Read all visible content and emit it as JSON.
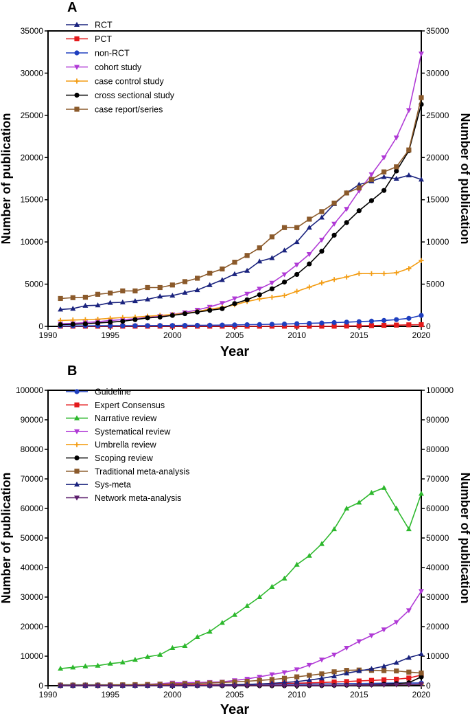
{
  "chart_data": [
    {
      "type": "line",
      "panel_label": "A",
      "xlabel": "Year",
      "ylabel": "Number of publication",
      "ylabel_right": "Number of publication",
      "xlim": [
        1990,
        2020
      ],
      "ylim": [
        0,
        35000
      ],
      "xticks": [
        "1990",
        "1995",
        "2000",
        "2005",
        "2010",
        "2015",
        "2020"
      ],
      "yticks": [
        "0",
        "5000",
        "10000",
        "15000",
        "20000",
        "25000",
        "30000",
        "35000"
      ],
      "legend_position": "top-left",
      "x": [
        1991,
        1992,
        1993,
        1994,
        1995,
        1996,
        1997,
        1998,
        1999,
        2000,
        2001,
        2002,
        2003,
        2004,
        2005,
        2006,
        2007,
        2008,
        2009,
        2010,
        2011,
        2012,
        2013,
        2014,
        2015,
        2016,
        2017,
        2018,
        2019,
        2020
      ],
      "series": [
        {
          "name": "RCT",
          "color": "#1a237e",
          "marker": "triangle-up",
          "values": [
            2000,
            2100,
            2450,
            2500,
            2800,
            2850,
            3000,
            3200,
            3550,
            3650,
            4000,
            4300,
            4900,
            5500,
            6200,
            6600,
            7700,
            8100,
            9000,
            10000,
            11700,
            12900,
            14500,
            15800,
            16800,
            17200,
            17700,
            17500,
            17900,
            17400
          ]
        },
        {
          "name": "PCT",
          "color": "#e41a1c",
          "marker": "square",
          "values": [
            20,
            20,
            20,
            20,
            20,
            20,
            20,
            20,
            20,
            20,
            20,
            20,
            20,
            20,
            20,
            20,
            20,
            20,
            20,
            20,
            20,
            20,
            20,
            40,
            60,
            90,
            120,
            150,
            180,
            200
          ]
        },
        {
          "name": "non-RCT",
          "color": "#1f3fbf",
          "marker": "circle",
          "values": [
            50,
            60,
            60,
            70,
            70,
            80,
            80,
            90,
            100,
            100,
            110,
            120,
            130,
            150,
            170,
            200,
            220,
            250,
            280,
            320,
            360,
            400,
            450,
            500,
            560,
            620,
            700,
            800,
            950,
            1300
          ]
        },
        {
          "name": "cohort study",
          "color": "#b03ad6",
          "marker": "triangle-down",
          "values": [
            300,
            350,
            450,
            550,
            700,
            800,
            900,
            1050,
            1200,
            1400,
            1650,
            1950,
            2300,
            2750,
            3300,
            3850,
            4450,
            5150,
            6150,
            7300,
            8550,
            10250,
            12150,
            13900,
            16050,
            18000,
            20000,
            22350,
            25600,
            32300
          ]
        },
        {
          "name": "case control study",
          "color": "#f39c12",
          "marker": "plus",
          "values": [
            700,
            750,
            800,
            850,
            950,
            1050,
            1100,
            1200,
            1300,
            1400,
            1550,
            1750,
            2050,
            2250,
            2550,
            2950,
            3250,
            3450,
            3650,
            4150,
            4650,
            5150,
            5550,
            5850,
            6250,
            6250,
            6250,
            6350,
            6850,
            7800
          ]
        },
        {
          "name": "cross sectional study",
          "color": "#000000",
          "marker": "circle",
          "values": [
            200,
            250,
            300,
            400,
            500,
            600,
            800,
            1000,
            1100,
            1300,
            1500,
            1700,
            1900,
            2100,
            2700,
            3150,
            3750,
            4450,
            5250,
            6150,
            7400,
            8900,
            10800,
            12300,
            13700,
            14900,
            16100,
            18400,
            20800,
            26300
          ]
        },
        {
          "name": "case report/series",
          "color": "#8b5a2b",
          "marker": "square",
          "values": [
            3300,
            3400,
            3450,
            3800,
            3950,
            4200,
            4200,
            4600,
            4600,
            4900,
            5300,
            5700,
            6300,
            6800,
            7600,
            8400,
            9300,
            10600,
            11700,
            11700,
            12700,
            13600,
            14600,
            15800,
            16400,
            17400,
            18300,
            18900,
            20900,
            27100
          ]
        }
      ]
    },
    {
      "type": "line",
      "panel_label": "B",
      "xlabel": "Year",
      "ylabel": "Number of publication",
      "ylabel_right": "Number of publication",
      "xlim": [
        1990,
        2020
      ],
      "ylim": [
        0,
        100000
      ],
      "xticks": [
        "1990",
        "1995",
        "2000",
        "2005",
        "2010",
        "2015",
        "2020"
      ],
      "yticks": [
        "0",
        "10000",
        "20000",
        "30000",
        "40000",
        "50000",
        "60000",
        "70000",
        "80000",
        "90000",
        "100000"
      ],
      "legend_position": "top-left",
      "x": [
        1991,
        1992,
        1993,
        1994,
        1995,
        1996,
        1997,
        1998,
        1999,
        2000,
        2001,
        2002,
        2003,
        2004,
        2005,
        2006,
        2007,
        2008,
        2009,
        2010,
        2011,
        2012,
        2013,
        2014,
        2015,
        2016,
        2017,
        2018,
        2019,
        2020
      ],
      "series": [
        {
          "name": "Guideline",
          "color": "#1f3fbf",
          "marker": "circle",
          "values": [
            300,
            300,
            300,
            300,
            300,
            300,
            300,
            300,
            300,
            350,
            350,
            350,
            350,
            400,
            400,
            400,
            450,
            450,
            500,
            500,
            550,
            600,
            650,
            700,
            750,
            800,
            850,
            900,
            900,
            900
          ]
        },
        {
          "name": "Expert Consensus",
          "color": "#e41a1c",
          "marker": "square",
          "values": [
            100,
            100,
            100,
            100,
            100,
            150,
            150,
            150,
            150,
            200,
            200,
            250,
            300,
            350,
            400,
            450,
            550,
            650,
            750,
            850,
            950,
            1100,
            1250,
            1400,
            1600,
            1800,
            2000,
            2200,
            2600,
            3600
          ]
        },
        {
          "name": "Narrative review",
          "color": "#2db82d",
          "marker": "triangle-up",
          "values": [
            5800,
            6200,
            6600,
            6800,
            7500,
            7900,
            8800,
            9800,
            10500,
            12800,
            13500,
            16500,
            18300,
            21300,
            24000,
            27000,
            30000,
            33500,
            36300,
            41000,
            44000,
            48000,
            53000,
            60000,
            62000,
            65300,
            67000,
            60000,
            53000,
            65000
          ]
        },
        {
          "name": "Systematical review",
          "color": "#b03ad6",
          "marker": "triangle-down",
          "values": [
            0,
            0,
            0,
            0,
            100,
            200,
            300,
            500,
            700,
            1000,
            1000,
            1100,
            1200,
            1300,
            1800,
            2300,
            3000,
            3800,
            4500,
            5500,
            7000,
            8800,
            10500,
            12800,
            15000,
            17000,
            19000,
            21500,
            25500,
            32000
          ]
        },
        {
          "name": "Umbrella review",
          "color": "#f39c12",
          "marker": "plus",
          "values": [
            0,
            0,
            0,
            0,
            0,
            0,
            0,
            0,
            0,
            0,
            0,
            0,
            0,
            0,
            0,
            0,
            0,
            0,
            20,
            40,
            60,
            90,
            120,
            160,
            200,
            250,
            300,
            350,
            400,
            450
          ]
        },
        {
          "name": "Scoping review",
          "color": "#000000",
          "marker": "circle",
          "values": [
            0,
            0,
            0,
            0,
            0,
            0,
            0,
            0,
            0,
            0,
            0,
            0,
            0,
            0,
            0,
            0,
            0,
            0,
            20,
            40,
            60,
            80,
            120,
            180,
            250,
            350,
            500,
            700,
            1000,
            3000
          ]
        },
        {
          "name": "Traditional meta-analysis",
          "color": "#8b5a2b",
          "marker": "square",
          "values": [
            200,
            200,
            200,
            200,
            250,
            300,
            350,
            400,
            500,
            600,
            700,
            800,
            900,
            1100,
            1300,
            1500,
            1800,
            2100,
            2500,
            3000,
            3500,
            4000,
            4700,
            5200,
            5300,
            5200,
            5100,
            5000,
            4600,
            4300
          ]
        },
        {
          "name": "Sys-meta",
          "color": "#1a237e",
          "marker": "triangle-up",
          "values": [
            0,
            0,
            0,
            0,
            0,
            0,
            0,
            0,
            0,
            0,
            0,
            50,
            100,
            200,
            300,
            450,
            600,
            800,
            1100,
            1400,
            1900,
            2500,
            3200,
            4200,
            5000,
            5700,
            6600,
            7800,
            9500,
            10700
          ]
        },
        {
          "name": "Network meta-analysis",
          "color": "#5c1f6e",
          "marker": "triangle-down",
          "values": [
            0,
            0,
            0,
            0,
            0,
            0,
            0,
            0,
            0,
            0,
            0,
            0,
            0,
            0,
            0,
            0,
            0,
            0,
            20,
            40,
            60,
            80,
            100,
            140,
            180,
            230,
            280,
            340,
            400,
            500
          ]
        }
      ]
    }
  ]
}
